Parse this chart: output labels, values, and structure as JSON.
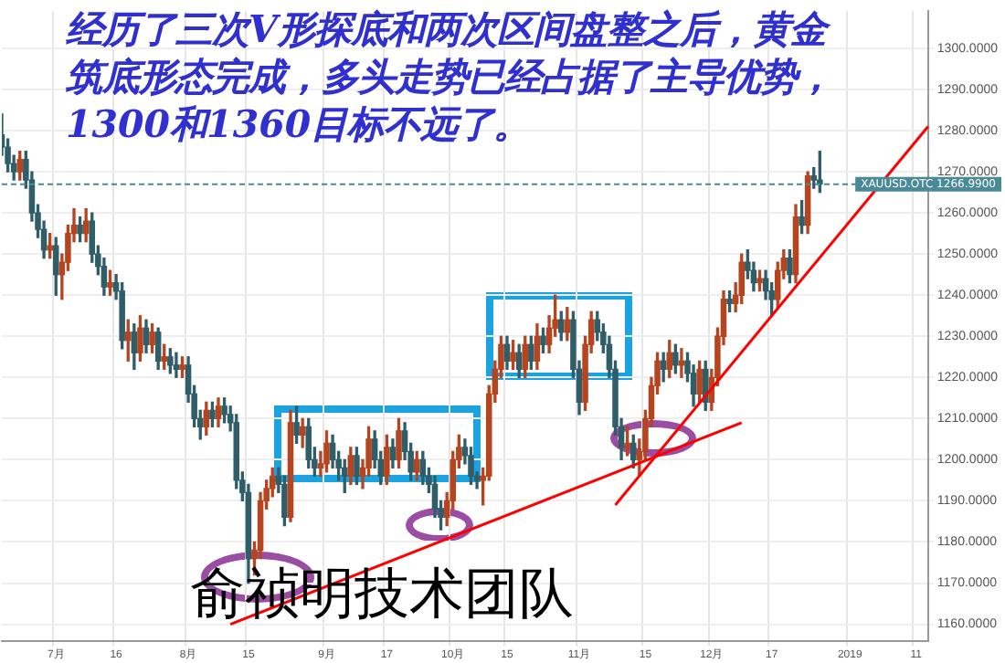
{
  "chart_data": {
    "type": "candlestick",
    "title": "经历了三次V形探底和两次区间盘整之后，黄金筑底形态完成，多头走势已经占据了主导优势，1300和1360目标不远了。",
    "annotations": [
      "俞祯明技术团队"
    ],
    "categories": [
      null,
      null,
      null,
      null,
      null,
      null,
      null,
      null,
      null,
      "7月",
      null,
      null,
      null,
      null,
      null,
      null,
      null,
      null,
      null,
      "16",
      null,
      null,
      null,
      null,
      null,
      null,
      null,
      null,
      null,
      null,
      null,
      "8月",
      null,
      null,
      null,
      null,
      null,
      null,
      null,
      null,
      null,
      "15",
      null,
      null,
      null,
      null,
      null,
      null,
      null,
      null,
      null,
      null,
      null,
      null,
      "9月",
      null,
      null,
      null,
      null,
      null,
      null,
      null,
      null,
      null,
      "17",
      null,
      null,
      null,
      null,
      null,
      null,
      null,
      null,
      null,
      null,
      "10月",
      null,
      null,
      null,
      null,
      null,
      null,
      null,
      null,
      "15",
      null,
      null,
      null,
      null,
      null,
      null,
      null,
      null,
      null,
      null,
      null,
      "11月",
      null,
      null,
      null,
      null,
      null,
      null,
      null,
      null,
      null,
      null,
      "15",
      null,
      null,
      null,
      null,
      null,
      null,
      null,
      null,
      null,
      null,
      "12月",
      null,
      null,
      null,
      null,
      null,
      null,
      null,
      null,
      null,
      "17",
      null,
      null,
      null,
      null,
      null,
      null,
      null,
      null,
      null,
      null,
      null,
      null,
      "2019",
      null,
      null,
      null,
      null,
      null,
      null,
      null,
      null,
      null,
      null,
      "11",
      null,
      null
    ],
    "series": [
      {
        "type": "candlestick",
        "ohlc": [
          [
            1279,
            1284,
            1274,
            1276
          ],
          [
            1276,
            1278,
            1270,
            1272
          ],
          [
            1272,
            1274,
            1268,
            1270
          ],
          [
            1270,
            1275,
            1268,
            1273
          ],
          [
            1273,
            1275,
            1266,
            1268
          ],
          [
            1268,
            1270,
            1258,
            1260
          ],
          [
            1260,
            1262,
            1254,
            1256
          ],
          [
            1256,
            1258,
            1249,
            1251
          ],
          [
            1251,
            1255,
            1249,
            1252
          ],
          [
            1252,
            1254,
            1240,
            1245
          ],
          [
            1245,
            1250,
            1239,
            1248
          ],
          [
            1248,
            1257,
            1246,
            1255
          ],
          [
            1255,
            1261,
            1253,
            1257
          ],
          [
            1257,
            1259,
            1253,
            1255
          ],
          [
            1255,
            1261,
            1253,
            1258
          ],
          [
            1258,
            1260,
            1248,
            1250
          ],
          [
            1250,
            1252,
            1245,
            1247
          ],
          [
            1247,
            1249,
            1240,
            1242
          ],
          [
            1242,
            1246,
            1240,
            1243
          ],
          [
            1243,
            1245,
            1239,
            1241
          ],
          [
            1241,
            1243,
            1227,
            1229
          ],
          [
            1229,
            1234,
            1224,
            1231
          ],
          [
            1231,
            1233,
            1222,
            1226
          ],
          [
            1226,
            1235,
            1224,
            1232
          ],
          [
            1232,
            1234,
            1226,
            1228
          ],
          [
            1228,
            1233,
            1226,
            1231
          ],
          [
            1231,
            1232,
            1222,
            1224
          ],
          [
            1224,
            1228,
            1222,
            1225
          ],
          [
            1225,
            1227,
            1221,
            1223
          ],
          [
            1223,
            1226,
            1220,
            1222
          ],
          [
            1222,
            1225,
            1220,
            1223
          ],
          [
            1223,
            1225,
            1214,
            1216
          ],
          [
            1216,
            1218,
            1208,
            1210
          ],
          [
            1210,
            1212,
            1205,
            1208
          ],
          [
            1208,
            1214,
            1206,
            1212
          ],
          [
            1212,
            1214,
            1208,
            1210
          ],
          [
            1210,
            1215,
            1208,
            1213
          ],
          [
            1213,
            1215,
            1209,
            1211
          ],
          [
            1211,
            1213,
            1207,
            1209
          ],
          [
            1209,
            1211,
            1193,
            1195
          ],
          [
            1195,
            1197,
            1190,
            1192
          ],
          [
            1192,
            1194,
            1170,
            1176
          ],
          [
            1176,
            1180,
            1172,
            1178
          ],
          [
            1178,
            1192,
            1176,
            1190
          ],
          [
            1190,
            1195,
            1188,
            1193
          ],
          [
            1193,
            1198,
            1191,
            1196
          ],
          [
            1196,
            1198,
            1192,
            1194
          ],
          [
            1194,
            1196,
            1184,
            1186
          ],
          [
            1186,
            1212,
            1185,
            1209
          ],
          [
            1209,
            1213,
            1204,
            1206
          ],
          [
            1206,
            1210,
            1203,
            1208
          ],
          [
            1208,
            1210,
            1198,
            1200
          ],
          [
            1200,
            1203,
            1196,
            1198
          ],
          [
            1198,
            1202,
            1196,
            1199
          ],
          [
            1199,
            1207,
            1197,
            1204
          ],
          [
            1204,
            1206,
            1198,
            1200
          ],
          [
            1200,
            1202,
            1195,
            1198
          ],
          [
            1198,
            1200,
            1192,
            1196
          ],
          [
            1196,
            1203,
            1194,
            1201
          ],
          [
            1201,
            1203,
            1194,
            1196
          ],
          [
            1196,
            1200,
            1193,
            1198
          ],
          [
            1198,
            1208,
            1196,
            1205
          ],
          [
            1205,
            1207,
            1198,
            1200
          ],
          [
            1200,
            1202,
            1194,
            1196
          ],
          [
            1196,
            1206,
            1194,
            1203
          ],
          [
            1203,
            1205,
            1198,
            1200
          ],
          [
            1200,
            1210,
            1198,
            1207
          ],
          [
            1207,
            1209,
            1200,
            1202
          ],
          [
            1202,
            1204,
            1195,
            1197
          ],
          [
            1197,
            1202,
            1195,
            1200
          ],
          [
            1200,
            1202,
            1194,
            1196
          ],
          [
            1196,
            1198,
            1192,
            1194
          ],
          [
            1194,
            1196,
            1186,
            1188
          ],
          [
            1188,
            1190,
            1183,
            1186
          ],
          [
            1186,
            1192,
            1184,
            1190
          ],
          [
            1190,
            1202,
            1188,
            1200
          ],
          [
            1200,
            1206,
            1198,
            1203
          ],
          [
            1203,
            1205,
            1199,
            1201
          ],
          [
            1201,
            1203,
            1194,
            1196
          ],
          [
            1196,
            1197,
            1193,
            1195
          ],
          [
            1195,
            1198,
            1189,
            1196
          ],
          [
            1196,
            1218,
            1195,
            1216
          ],
          [
            1216,
            1224,
            1214,
            1222
          ],
          [
            1222,
            1230,
            1220,
            1228
          ],
          [
            1228,
            1230,
            1222,
            1224
          ],
          [
            1224,
            1229,
            1222,
            1226
          ],
          [
            1226,
            1228,
            1220,
            1222
          ],
          [
            1222,
            1230,
            1220,
            1228
          ],
          [
            1228,
            1230,
            1222,
            1224
          ],
          [
            1224,
            1233,
            1222,
            1230
          ],
          [
            1230,
            1232,
            1226,
            1228
          ],
          [
            1228,
            1235,
            1226,
            1232
          ],
          [
            1232,
            1240,
            1230,
            1234
          ],
          [
            1234,
            1236,
            1229,
            1231
          ],
          [
            1231,
            1237,
            1229,
            1234
          ],
          [
            1234,
            1236,
            1220,
            1222
          ],
          [
            1222,
            1224,
            1211,
            1214
          ],
          [
            1214,
            1230,
            1212,
            1228
          ],
          [
            1228,
            1236,
            1226,
            1234
          ],
          [
            1234,
            1236,
            1229,
            1231
          ],
          [
            1231,
            1233,
            1226,
            1228
          ],
          [
            1228,
            1230,
            1220,
            1222
          ],
          [
            1222,
            1224,
            1206,
            1208
          ],
          [
            1208,
            1210,
            1200,
            1203
          ],
          [
            1203,
            1208,
            1201,
            1204
          ],
          [
            1204,
            1206,
            1198,
            1200
          ],
          [
            1200,
            1205,
            1196,
            1202
          ],
          [
            1202,
            1212,
            1200,
            1210
          ],
          [
            1210,
            1220,
            1208,
            1218
          ],
          [
            1218,
            1226,
            1216,
            1224
          ],
          [
            1224,
            1226,
            1219,
            1222
          ],
          [
            1222,
            1229,
            1220,
            1226
          ],
          [
            1226,
            1228,
            1221,
            1223
          ],
          [
            1223,
            1227,
            1220,
            1224
          ],
          [
            1224,
            1226,
            1219,
            1221
          ],
          [
            1221,
            1223,
            1213,
            1216
          ],
          [
            1216,
            1224,
            1214,
            1222
          ],
          [
            1222,
            1224,
            1212,
            1214
          ],
          [
            1214,
            1222,
            1212,
            1220
          ],
          [
            1220,
            1232,
            1218,
            1230
          ],
          [
            1230,
            1241,
            1228,
            1239
          ],
          [
            1239,
            1241,
            1236,
            1238
          ],
          [
            1238,
            1243,
            1236,
            1240
          ],
          [
            1240,
            1250,
            1238,
            1248
          ],
          [
            1248,
            1251,
            1244,
            1246
          ],
          [
            1246,
            1248,
            1241,
            1243
          ],
          [
            1243,
            1246,
            1241,
            1244
          ],
          [
            1244,
            1246,
            1239,
            1241
          ],
          [
            1241,
            1243,
            1235,
            1239
          ],
          [
            1239,
            1248,
            1237,
            1246
          ],
          [
            1246,
            1251,
            1244,
            1249
          ],
          [
            1249,
            1251,
            1243,
            1245
          ],
          [
            1245,
            1262,
            1243,
            1259
          ],
          [
            1259,
            1263,
            1255,
            1257
          ],
          [
            1257,
            1270,
            1255,
            1269
          ],
          [
            1269,
            1271,
            1266,
            1268
          ],
          [
            1268,
            1275,
            1265,
            1266.99
          ],
          null,
          null,
          null,
          null,
          null,
          null,
          null,
          null,
          null,
          null,
          null,
          null,
          null,
          null,
          null,
          null,
          null,
          null
        ],
        "colors": [
          "#2f5d68",
          "#2f5d68",
          "#2f5d68",
          "#b5441f",
          "#2f5d68",
          "#2f5d68",
          "#2f5d68",
          "#2f5d68",
          "#b5441f",
          "#2f5d68",
          "#b5441f",
          "#b5441f",
          "#b5441f",
          "#2f5d68",
          "#b5441f",
          "#2f5d68",
          "#2f5d68",
          "#2f5d68",
          "#b5441f",
          "#2f5d68",
          "#2f5d68",
          "#b5441f",
          "#2f5d68",
          "#b5441f",
          "#2f5d68",
          "#b5441f",
          "#2f5d68",
          "#b5441f",
          "#2f5d68",
          "#2f5d68",
          "#b5441f",
          "#2f5d68",
          "#2f5d68",
          "#2f5d68",
          "#b5441f",
          "#2f5d68",
          "#b5441f",
          "#2f5d68",
          "#2f5d68",
          "#2f5d68",
          "#2f5d68",
          "#2f5d68",
          "#b5441f",
          "#b5441f",
          "#b5441f",
          "#b5441f",
          "#2f5d68",
          "#2f5d68",
          "#b5441f",
          "#2f5d68",
          "#b5441f",
          "#2f5d68",
          "#2f5d68",
          "#b5441f",
          "#b5441f",
          "#2f5d68",
          "#2f5d68",
          "#2f5d68",
          "#b5441f",
          "#2f5d68",
          "#b5441f",
          "#b5441f",
          "#2f5d68",
          "#2f5d68",
          "#b5441f",
          "#2f5d68",
          "#b5441f",
          "#2f5d68",
          "#2f5d68",
          "#b5441f",
          "#2f5d68",
          "#2f5d68",
          "#2f5d68",
          "#2f5d68",
          "#b5441f",
          "#b5441f",
          "#b5441f",
          "#2f5d68",
          "#2f5d68",
          "#2f5d68",
          "#b5441f",
          "#b5441f",
          "#b5441f",
          "#b5441f",
          "#2f5d68",
          "#b5441f",
          "#2f5d68",
          "#b5441f",
          "#2f5d68",
          "#b5441f",
          "#2f5d68",
          "#b5441f",
          "#b5441f",
          "#2f5d68",
          "#b5441f",
          "#2f5d68",
          "#2f5d68",
          "#b5441f",
          "#b5441f",
          "#2f5d68",
          "#2f5d68",
          "#2f5d68",
          "#2f5d68",
          "#2f5d68",
          "#b5441f",
          "#2f5d68",
          "#b5441f",
          "#b5441f",
          "#b5441f",
          "#b5441f",
          "#2f5d68",
          "#b5441f",
          "#2f5d68",
          "#b5441f",
          "#2f5d68",
          "#2f5d68",
          "#b5441f",
          "#2f5d68",
          "#b5441f",
          "#b5441f",
          "#b5441f",
          "#2f5d68",
          "#b5441f",
          "#b5441f",
          "#2f5d68",
          "#2f5d68",
          "#b5441f",
          "#2f5d68",
          "#2f5d68",
          "#b5441f",
          "#b5441f",
          "#2f5d68",
          "#b5441f",
          "#2f5d68",
          "#b5441f",
          "#2f5d68",
          "#2f5d68",
          null,
          null,
          null,
          null,
          null,
          null,
          null,
          null,
          null,
          null,
          null,
          null,
          null,
          null,
          null,
          null,
          null,
          null
        ]
      },
      {
        "type": "line",
        "color": "#ff0000",
        "values": [
          null,
          null,
          null,
          null,
          null,
          null,
          null,
          null,
          null,
          null,
          null,
          null,
          null,
          null,
          null,
          null,
          null,
          null,
          null,
          null,
          null,
          null,
          null,
          null,
          null,
          null,
          null,
          null,
          null,
          null,
          null,
          null,
          null,
          null,
          null,
          null,
          null,
          null,
          1160,
          null,
          null,
          null,
          null,
          null,
          null,
          null,
          null,
          null,
          null,
          null,
          null,
          null,
          null,
          null,
          null,
          null,
          null,
          null,
          null,
          null,
          null,
          null,
          null,
          null,
          null,
          null,
          null,
          null,
          null,
          null,
          null,
          null,
          null,
          null,
          null,
          null,
          null,
          null,
          null,
          null,
          null,
          null,
          null,
          null,
          null,
          null,
          null,
          null,
          null,
          null,
          null,
          null,
          null,
          null,
          null,
          null,
          null,
          null,
          null,
          null,
          null,
          null,
          null,
          null,
          null,
          null,
          null,
          null,
          null,
          null,
          null,
          null,
          null,
          null,
          null,
          null,
          null,
          null,
          null,
          null,
          null,
          null,
          null,
          1209,
          null,
          null,
          null,
          null,
          null,
          null,
          null,
          null,
          null,
          null,
          null,
          null,
          null,
          null,
          null,
          null,
          null,
          null,
          null,
          null,
          null,
          null,
          null,
          null,
          null,
          null,
          null,
          null,
          null,
          null,
          null
        ]
      },
      {
        "type": "line",
        "color": "#ff0000",
        "values": [
          null,
          null,
          null,
          null,
          null,
          null,
          null,
          null,
          null,
          null,
          null,
          null,
          null,
          null,
          null,
          null,
          null,
          null,
          null,
          null,
          null,
          null,
          null,
          null,
          null,
          null,
          null,
          null,
          null,
          null,
          null,
          null,
          null,
          null,
          null,
          null,
          null,
          null,
          null,
          null,
          null,
          null,
          null,
          null,
          null,
          null,
          null,
          null,
          null,
          null,
          null,
          null,
          null,
          null,
          null,
          null,
          null,
          null,
          null,
          null,
          null,
          null,
          null,
          null,
          null,
          null,
          null,
          null,
          null,
          null,
          null,
          null,
          null,
          null,
          null,
          null,
          null,
          null,
          null,
          null,
          null,
          null,
          null,
          null,
          null,
          null,
          null,
          null,
          null,
          null,
          null,
          null,
          null,
          null,
          null,
          null,
          null,
          null,
          null,
          null,
          null,
          null,
          1189,
          null,
          null,
          null,
          null,
          null,
          null,
          null,
          null,
          null,
          null,
          null,
          null,
          null,
          null,
          null,
          null,
          null,
          null,
          null,
          null,
          null,
          null,
          null,
          null,
          null,
          null,
          null,
          null,
          null,
          null,
          null,
          null,
          null,
          null,
          null,
          null,
          null,
          null,
          null,
          null,
          null,
          null,
          null,
          null,
          null,
          null,
          null,
          null,
          null,
          null,
          null,
          1281
        ]
      }
    ],
    "ylim": [
      1156,
      1309
    ],
    "yticks": [
      {
        "value": 1160,
        "label": "1160.0000"
      },
      {
        "value": 1170,
        "label": "1170.0000"
      },
      {
        "value": 1180,
        "label": "1180.0000"
      },
      {
        "value": 1190,
        "label": "1190.0000"
      },
      {
        "value": 1200,
        "label": "1200.0000"
      },
      {
        "value": 1210,
        "label": "1210.0000"
      },
      {
        "value": 1220,
        "label": "1220.0000"
      },
      {
        "value": 1230,
        "label": "1230.0000"
      },
      {
        "value": 1240,
        "label": "1240.0000"
      },
      {
        "value": 1250,
        "label": "1250.0000"
      },
      {
        "value": 1260,
        "label": "1260.0000"
      },
      {
        "value": 1270,
        "label": "1270.0000"
      },
      {
        "value": 1280,
        "label": "1280.0000"
      },
      {
        "value": 1290,
        "label": "1290.0000"
      },
      {
        "value": 1300,
        "label": "1300.0000"
      }
    ],
    "ref_lines": [
      {
        "axis": "y",
        "value": 1266.99,
        "label": "XAUUSD.OTC 1266.9900",
        "color": "#4a8a96",
        "line_style": "dashed"
      }
    ],
    "grid": true,
    "legend": false
  }
}
